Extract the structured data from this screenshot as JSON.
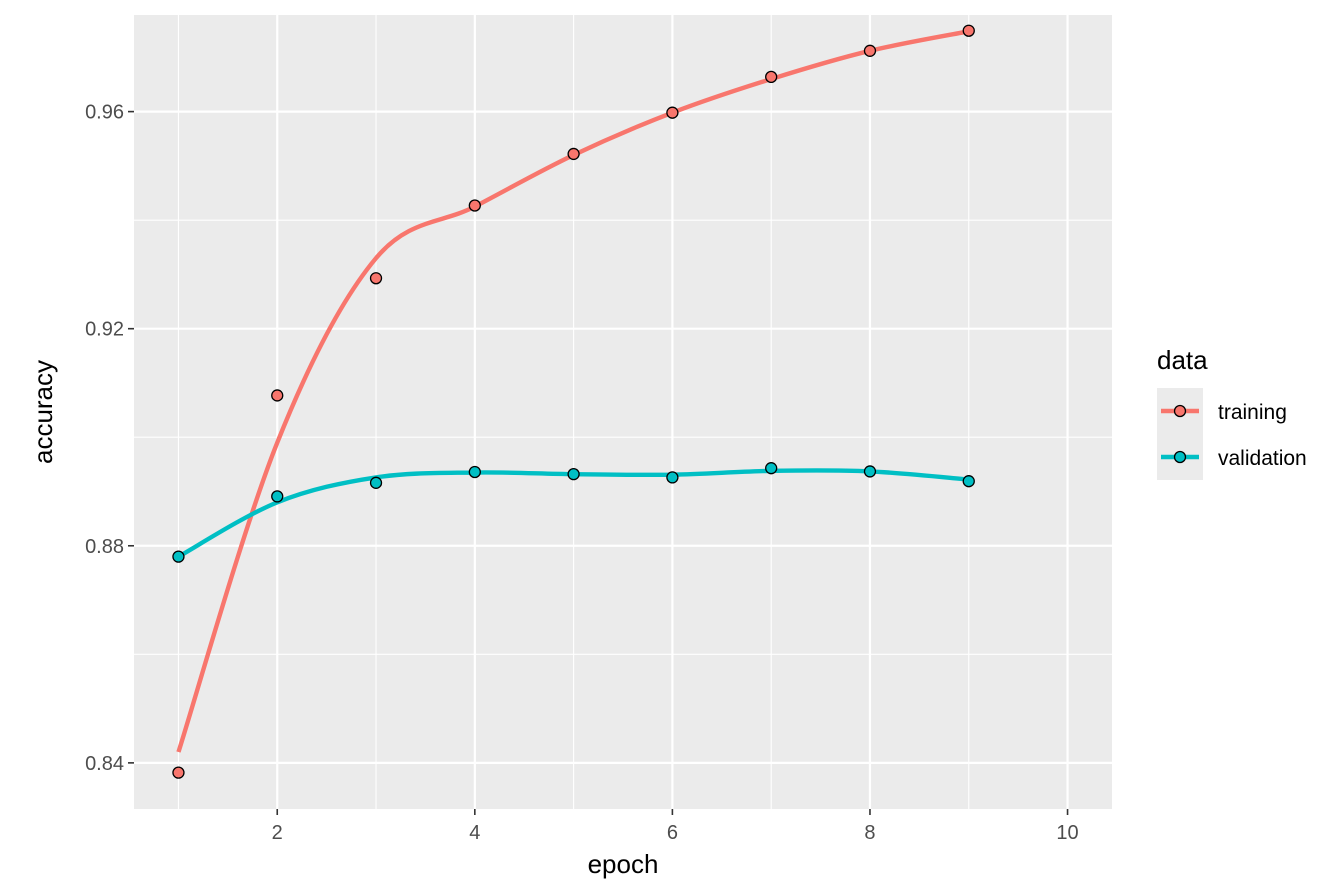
{
  "chart_data": {
    "type": "line",
    "xlabel": "epoch",
    "ylabel": "accuracy",
    "xlim": [
      0.55,
      10.45
    ],
    "ylim": [
      0.8315,
      0.9778
    ],
    "x_ticks": [
      2,
      4,
      6,
      8,
      10
    ],
    "y_ticks": [
      0.84,
      0.88,
      0.92,
      0.96
    ],
    "x_tick_labels": [
      "2",
      "4",
      "6",
      "8",
      "10"
    ],
    "y_tick_labels": [
      "0.84",
      "0.88",
      "0.92",
      "0.96"
    ],
    "grid": true,
    "background": "#ebebeb",
    "legend": {
      "title": "data",
      "position": "right"
    },
    "x": [
      1,
      2,
      3,
      4,
      5,
      6,
      7,
      8,
      9
    ],
    "series": [
      {
        "name": "training",
        "color": "#f8766d",
        "points": [
          0.8382,
          0.9077,
          0.9293,
          0.9427,
          0.9522,
          0.9598,
          0.9664,
          0.9712,
          0.9749
        ],
        "smooth": [
          0.842,
          0.899,
          0.933,
          0.9425,
          0.952,
          0.9598,
          0.966,
          0.9712,
          0.9748
        ]
      },
      {
        "name": "validation",
        "color": "#00bfc4",
        "points": [
          0.878,
          0.8891,
          0.8916,
          0.8936,
          0.8932,
          0.8926,
          0.8943,
          0.8937,
          0.8919
        ],
        "smooth": [
          0.878,
          0.888,
          0.8926,
          0.8935,
          0.8932,
          0.8931,
          0.8938,
          0.8937,
          0.8922
        ]
      }
    ]
  }
}
